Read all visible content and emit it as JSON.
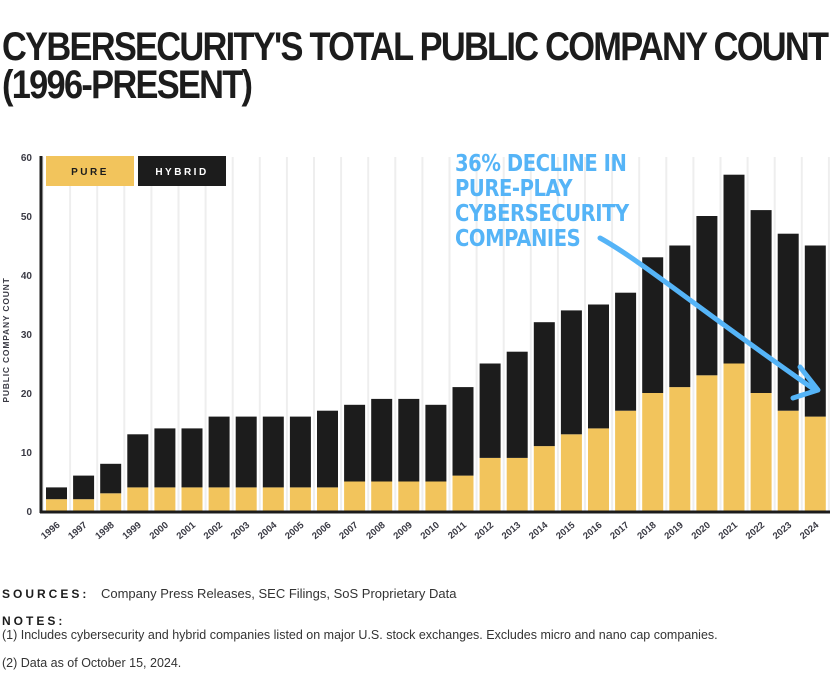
{
  "title_lines": [
    "CYBERSECURITY'S TOTAL PUBLIC COMPANY COUNT",
    "(1996-PRESENT)"
  ],
  "annotation_lines": [
    "36% DECLINE IN",
    "PURE-PLAY",
    "CYBERSECURITY",
    "COMPANIES"
  ],
  "colors": {
    "pure": "#f2c45c",
    "hybrid": "#1c1c1c",
    "annotation": "#55b4f7",
    "gridline": "#eeeeee"
  },
  "footer": {
    "sources_label": "SOURCES:",
    "sources_text": "Company Press Releases, SEC Filings, SoS Proprietary Data",
    "notes_label": "NOTES:",
    "notes": [
      "(1) Includes cybersecurity and hybrid companies listed on major U.S. stock exchanges. Excludes micro and nano cap companies.",
      "(2) Data as of October 15, 2024."
    ]
  },
  "chart_data": {
    "type": "bar",
    "stacked": true,
    "title": "CYBERSECURITY'S TOTAL PUBLIC COMPANY COUNT (1996-PRESENT)",
    "xlabel": "",
    "ylabel": "PUBLIC COMPANY COUNT",
    "ylim": [
      0,
      60
    ],
    "yticks": [
      0,
      10,
      20,
      30,
      40,
      50,
      60
    ],
    "grid": "vertical",
    "legend": {
      "placement": "top-left",
      "entries": [
        "PURE",
        "HYBRID"
      ]
    },
    "categories": [
      "1996",
      "1997",
      "1998",
      "1999",
      "2000",
      "2001",
      "2002",
      "2003",
      "2004",
      "2005",
      "2006",
      "2007",
      "2008",
      "2009",
      "2010",
      "2011",
      "2012",
      "2013",
      "2014",
      "2015",
      "2016",
      "2017",
      "2018",
      "2019",
      "2020",
      "2021",
      "2022",
      "2023",
      "2024"
    ],
    "series": [
      {
        "name": "PURE",
        "values": [
          2,
          2,
          3,
          4,
          4,
          4,
          4,
          4,
          4,
          4,
          4,
          5,
          5,
          5,
          5,
          6,
          9,
          9,
          11,
          13,
          14,
          17,
          20,
          21,
          23,
          25,
          20,
          17,
          16
        ]
      },
      {
        "name": "HYBRID",
        "values": [
          2,
          4,
          5,
          9,
          10,
          10,
          12,
          12,
          12,
          12,
          13,
          13,
          14,
          14,
          13,
          15,
          16,
          18,
          21,
          21,
          21,
          20,
          23,
          24,
          27,
          32,
          31,
          30,
          29
        ]
      }
    ],
    "totals": [
      4,
      6,
      8,
      13,
      14,
      14,
      16,
      16,
      16,
      16,
      17,
      18,
      19,
      19,
      18,
      21,
      25,
      27,
      32,
      34,
      35,
      37,
      43,
      45,
      50,
      57,
      51,
      47,
      45
    ],
    "annotations": [
      {
        "text": "36% DECLINE IN PURE-PLAY CYBERSECURITY COMPANIES",
        "arrow_from": "2017",
        "arrow_to": "2024"
      }
    ]
  }
}
